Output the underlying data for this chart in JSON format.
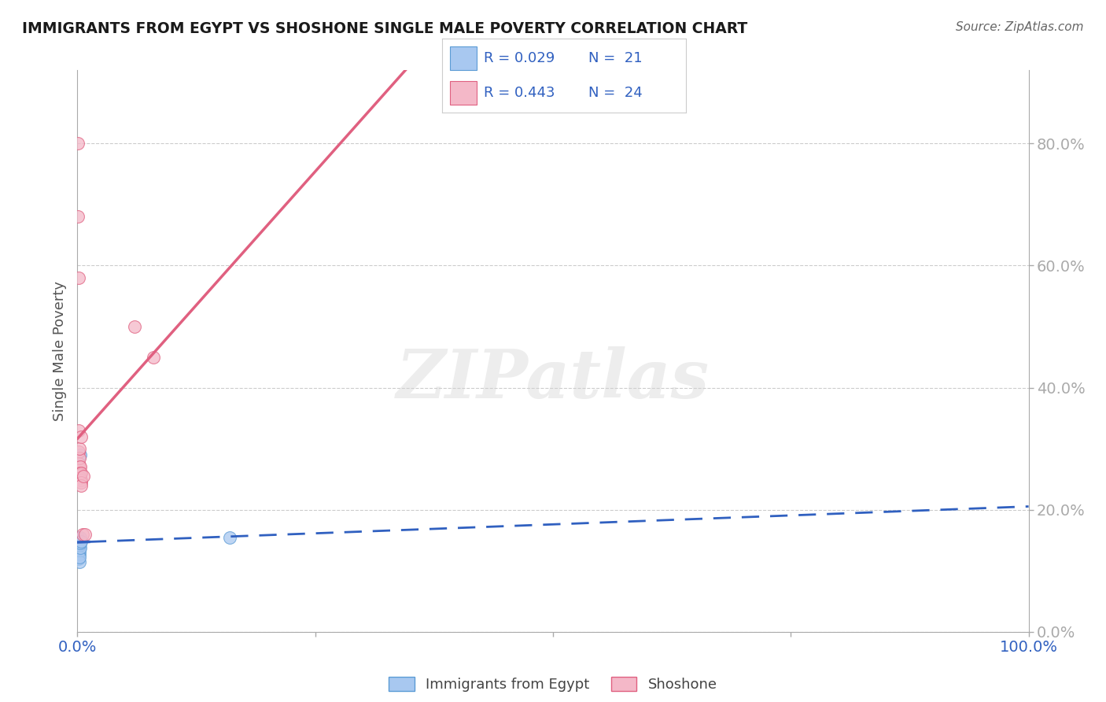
{
  "title": "IMMIGRANTS FROM EGYPT VS SHOSHONE SINGLE MALE POVERTY CORRELATION CHART",
  "source": "Source: ZipAtlas.com",
  "ylabel": "Single Male Poverty",
  "right_yticklabels": [
    "0.0%",
    "20.0%",
    "40.0%",
    "60.0%",
    "80.0%"
  ],
  "legend_r1": "R = 0.029",
  "legend_n1": "N =  21",
  "legend_r2": "R = 0.443",
  "legend_n2": "N =  24",
  "egypt_x": [
    0.0008,
    0.0008,
    0.0012,
    0.0015,
    0.0015,
    0.0018,
    0.0018,
    0.002,
    0.002,
    0.002,
    0.0022,
    0.0022,
    0.0025,
    0.0025,
    0.0028,
    0.0028,
    0.003,
    0.003,
    0.0032,
    0.004,
    0.16
  ],
  "egypt_y": [
    0.155,
    0.14,
    0.148,
    0.13,
    0.12,
    0.128,
    0.138,
    0.132,
    0.142,
    0.148,
    0.15,
    0.145,
    0.115,
    0.122,
    0.155,
    0.148,
    0.138,
    0.145,
    0.29,
    0.148,
    0.155
  ],
  "shoshone_x": [
    0.0005,
    0.0008,
    0.001,
    0.0012,
    0.0015,
    0.0015,
    0.0018,
    0.002,
    0.0022,
    0.0025,
    0.0028,
    0.0028,
    0.003,
    0.0032,
    0.0035,
    0.0035,
    0.0038,
    0.004,
    0.0042,
    0.0055,
    0.006,
    0.008,
    0.06,
    0.08
  ],
  "shoshone_y": [
    0.8,
    0.68,
    0.58,
    0.33,
    0.295,
    0.275,
    0.27,
    0.26,
    0.285,
    0.3,
    0.27,
    0.26,
    0.258,
    0.252,
    0.248,
    0.26,
    0.245,
    0.24,
    0.32,
    0.16,
    0.255,
    0.16,
    0.5,
    0.45
  ],
  "egypt_color": "#A8C8F0",
  "egypt_edge": "#5B9BD5",
  "shoshone_color": "#F4B8C8",
  "shoshone_edge": "#E06080",
  "trendline_egypt_color": "#3060C0",
  "trendline_shoshone_color": "#E06080",
  "background_color": "#FFFFFF",
  "grid_color": "#CCCCCC",
  "watermark_text": "ZIPatlas",
  "xlim": [
    0.0,
    1.0
  ],
  "ylim": [
    0.0,
    0.92
  ],
  "yticks": [
    0.0,
    0.2,
    0.4,
    0.6,
    0.8
  ],
  "xtick_labels_show": [
    "0.0%",
    "100.0%"
  ],
  "xtick_positions_show": [
    0.0,
    1.0
  ]
}
